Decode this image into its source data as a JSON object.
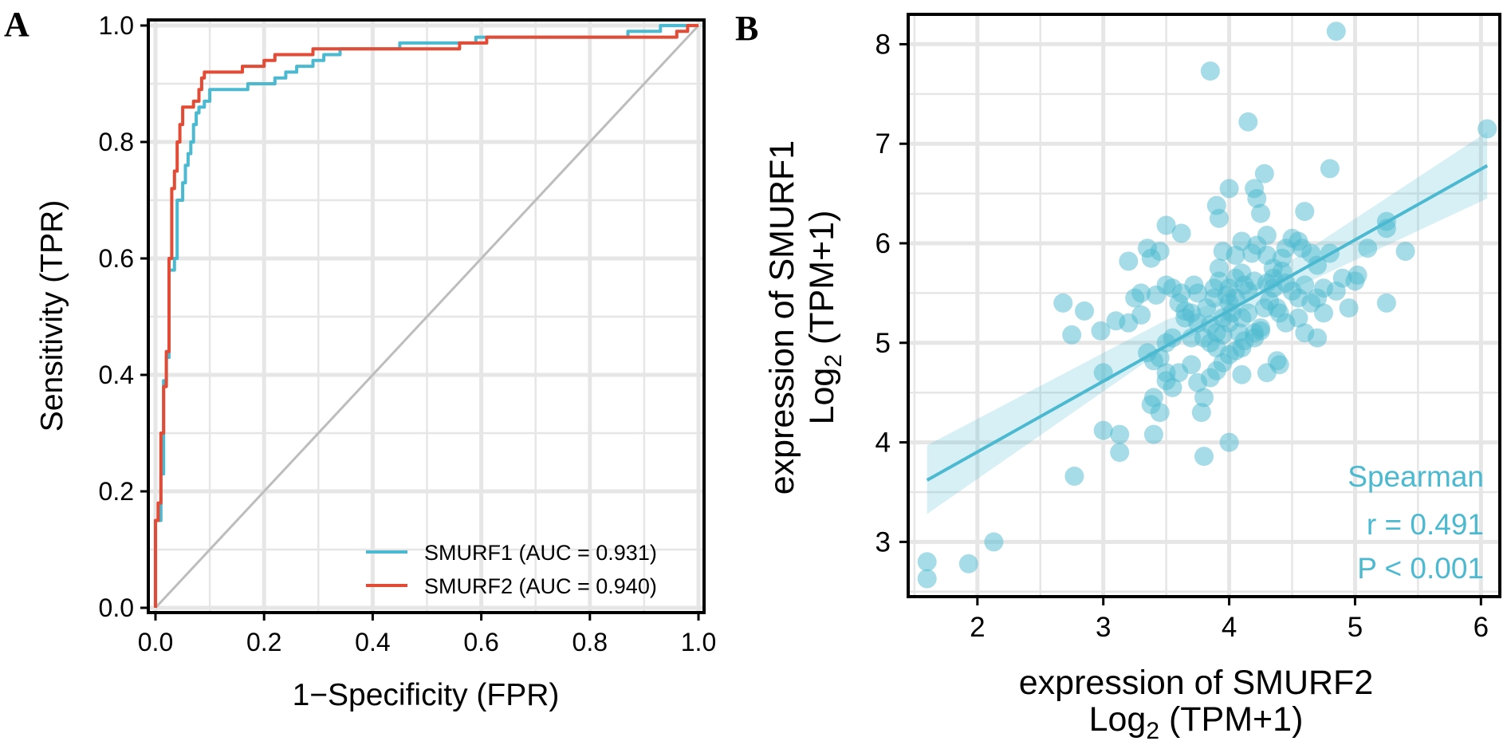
{
  "panels": {
    "a_letter": "A",
    "b_letter": "B"
  },
  "chart_data": [
    {
      "type": "line",
      "panel": "A",
      "title": "",
      "xlabel": "1−Specificity (FPR)",
      "ylabel": "Sensitivity (TPR)",
      "xlim": [
        0,
        1
      ],
      "ylim": [
        0,
        1
      ],
      "xticks": [
        "0.0",
        "0.2",
        "0.4",
        "0.6",
        "0.8",
        "1.0"
      ],
      "yticks": [
        "0.0",
        "0.2",
        "0.4",
        "0.6",
        "0.8",
        "1.0"
      ],
      "grid": true,
      "legend_position": "bottom-right",
      "diagonal_color": "#bdbdbd",
      "series": [
        {
          "name": "SMURF1 (AUC = 0.931)",
          "color": "#4bb9d0",
          "points": [
            [
              0,
              0
            ],
            [
              0,
              0.15
            ],
            [
              0.01,
              0.15
            ],
            [
              0.01,
              0.23
            ],
            [
              0.015,
              0.23
            ],
            [
              0.015,
              0.39
            ],
            [
              0.02,
              0.39
            ],
            [
              0.02,
              0.43
            ],
            [
              0.025,
              0.43
            ],
            [
              0.025,
              0.58
            ],
            [
              0.035,
              0.58
            ],
            [
              0.035,
              0.6
            ],
            [
              0.04,
              0.6
            ],
            [
              0.04,
              0.7
            ],
            [
              0.05,
              0.7
            ],
            [
              0.05,
              0.73
            ],
            [
              0.055,
              0.73
            ],
            [
              0.055,
              0.76
            ],
            [
              0.06,
              0.76
            ],
            [
              0.06,
              0.78
            ],
            [
              0.065,
              0.78
            ],
            [
              0.065,
              0.8
            ],
            [
              0.07,
              0.8
            ],
            [
              0.07,
              0.83
            ],
            [
              0.075,
              0.83
            ],
            [
              0.075,
              0.85
            ],
            [
              0.08,
              0.85
            ],
            [
              0.08,
              0.86
            ],
            [
              0.09,
              0.86
            ],
            [
              0.09,
              0.87
            ],
            [
              0.1,
              0.87
            ],
            [
              0.1,
              0.89
            ],
            [
              0.17,
              0.89
            ],
            [
              0.17,
              0.9
            ],
            [
              0.22,
              0.9
            ],
            [
              0.22,
              0.91
            ],
            [
              0.24,
              0.91
            ],
            [
              0.24,
              0.92
            ],
            [
              0.26,
              0.92
            ],
            [
              0.26,
              0.93
            ],
            [
              0.29,
              0.93
            ],
            [
              0.29,
              0.94
            ],
            [
              0.31,
              0.94
            ],
            [
              0.31,
              0.95
            ],
            [
              0.34,
              0.95
            ],
            [
              0.34,
              0.96
            ],
            [
              0.45,
              0.96
            ],
            [
              0.45,
              0.97
            ],
            [
              0.59,
              0.97
            ],
            [
              0.59,
              0.98
            ],
            [
              0.87,
              0.98
            ],
            [
              0.87,
              0.99
            ],
            [
              0.93,
              0.99
            ],
            [
              0.93,
              1.0
            ],
            [
              1.0,
              1.0
            ]
          ]
        },
        {
          "name": "SMURF2 (AUC = 0.940)",
          "color": "#e24b35",
          "points": [
            [
              0,
              0
            ],
            [
              0,
              0.15
            ],
            [
              0.005,
              0.15
            ],
            [
              0.005,
              0.18
            ],
            [
              0.01,
              0.18
            ],
            [
              0.01,
              0.3
            ],
            [
              0.015,
              0.3
            ],
            [
              0.015,
              0.38
            ],
            [
              0.02,
              0.38
            ],
            [
              0.02,
              0.44
            ],
            [
              0.025,
              0.44
            ],
            [
              0.025,
              0.6
            ],
            [
              0.03,
              0.6
            ],
            [
              0.03,
              0.72
            ],
            [
              0.035,
              0.72
            ],
            [
              0.035,
              0.75
            ],
            [
              0.04,
              0.75
            ],
            [
              0.04,
              0.8
            ],
            [
              0.045,
              0.8
            ],
            [
              0.045,
              0.83
            ],
            [
              0.05,
              0.83
            ],
            [
              0.05,
              0.86
            ],
            [
              0.07,
              0.86
            ],
            [
              0.07,
              0.87
            ],
            [
              0.08,
              0.87
            ],
            [
              0.08,
              0.89
            ],
            [
              0.085,
              0.89
            ],
            [
              0.085,
              0.91
            ],
            [
              0.09,
              0.91
            ],
            [
              0.09,
              0.92
            ],
            [
              0.16,
              0.92
            ],
            [
              0.16,
              0.93
            ],
            [
              0.2,
              0.93
            ],
            [
              0.2,
              0.94
            ],
            [
              0.22,
              0.94
            ],
            [
              0.22,
              0.95
            ],
            [
              0.29,
              0.95
            ],
            [
              0.29,
              0.96
            ],
            [
              0.56,
              0.96
            ],
            [
              0.56,
              0.97
            ],
            [
              0.61,
              0.97
            ],
            [
              0.61,
              0.98
            ],
            [
              0.96,
              0.98
            ],
            [
              0.96,
              0.99
            ],
            [
              0.98,
              0.99
            ],
            [
              0.98,
              1.0
            ],
            [
              1.0,
              1.0
            ]
          ]
        }
      ]
    },
    {
      "type": "scatter",
      "panel": "B",
      "title": "",
      "xlabel": "expression of SMURF2",
      "xlabel2_main": "Log",
      "xlabel2_sub": "2",
      "xlabel2_rest": " (TPM+1)",
      "ylabel": "expression of SMURF1",
      "ylabel2_main": "Log",
      "ylabel2_sub": "2",
      "ylabel2_rest": " (TPM+1)",
      "xlim": [
        1.45,
        6.15
      ],
      "ylim": [
        2.45,
        8.3
      ],
      "xticks": [
        2,
        3,
        4,
        5,
        6
      ],
      "yticks": [
        3,
        4,
        5,
        6,
        7,
        8
      ],
      "grid": true,
      "color": "#4bb9d0",
      "stat_method": "Spearman",
      "stat_r": "r = 0.491",
      "stat_p": "P < 0.001",
      "regression": {
        "x": [
          1.6,
          6.05
        ],
        "y": [
          3.62,
          6.78
        ]
      },
      "ci_band": {
        "x": [
          1.6,
          3.5,
          4.1,
          6.05
        ],
        "lower": [
          3.28,
          4.95,
          5.3,
          6.45
        ],
        "upper": [
          3.97,
          5.23,
          5.5,
          7.12
        ]
      },
      "points": [
        [
          1.6,
          2.8
        ],
        [
          1.6,
          2.63
        ],
        [
          1.93,
          2.78
        ],
        [
          2.13,
          3.0
        ],
        [
          2.77,
          3.66
        ],
        [
          3.0,
          4.12
        ],
        [
          3.13,
          3.9
        ],
        [
          3.13,
          4.08
        ],
        [
          3.4,
          4.08
        ],
        [
          3.8,
          3.86
        ],
        [
          4.0,
          4.0
        ],
        [
          3.85,
          7.73
        ],
        [
          4.85,
          8.13
        ],
        [
          4.15,
          7.22
        ],
        [
          6.05,
          7.15
        ],
        [
          4.8,
          6.75
        ],
        [
          4.0,
          6.55
        ],
        [
          4.2,
          6.55
        ],
        [
          4.28,
          6.7
        ],
        [
          3.9,
          6.38
        ],
        [
          3.92,
          6.25
        ],
        [
          4.22,
          6.45
        ],
        [
          4.25,
          6.3
        ],
        [
          4.6,
          6.32
        ],
        [
          3.5,
          6.18
        ],
        [
          3.62,
          6.1
        ],
        [
          3.35,
          5.95
        ],
        [
          3.45,
          5.92
        ],
        [
          3.38,
          5.85
        ],
        [
          3.2,
          5.82
        ],
        [
          3.5,
          5.58
        ],
        [
          3.55,
          5.55
        ],
        [
          3.42,
          5.48
        ],
        [
          3.3,
          5.5
        ],
        [
          3.62,
          5.5
        ],
        [
          3.75,
          5.5
        ],
        [
          3.88,
          5.55
        ],
        [
          3.92,
          5.75
        ],
        [
          4.0,
          5.55
        ],
        [
          4.05,
          5.65
        ],
        [
          4.1,
          5.7
        ],
        [
          4.12,
          5.58
        ],
        [
          4.18,
          5.9
        ],
        [
          4.22,
          5.98
        ],
        [
          4.3,
          5.88
        ],
        [
          4.35,
          5.75
        ],
        [
          4.42,
          5.85
        ],
        [
          4.5,
          6.05
        ],
        [
          4.58,
          5.95
        ],
        [
          4.65,
          5.9
        ],
        [
          4.7,
          5.78
        ],
        [
          4.75,
          5.55
        ],
        [
          4.8,
          5.9
        ],
        [
          4.9,
          5.65
        ],
        [
          4.95,
          5.35
        ],
        [
          5.0,
          5.62
        ],
        [
          5.02,
          5.68
        ],
        [
          5.1,
          5.95
        ],
        [
          5.25,
          6.22
        ],
        [
          5.25,
          6.15
        ],
        [
          5.4,
          5.92
        ],
        [
          5.25,
          5.4
        ],
        [
          4.55,
          5.25
        ],
        [
          4.6,
          5.1
        ],
        [
          4.7,
          5.05
        ],
        [
          4.45,
          5.2
        ],
        [
          4.4,
          5.3
        ],
        [
          4.38,
          5.35
        ],
        [
          4.32,
          5.42
        ],
        [
          4.25,
          5.15
        ],
        [
          4.2,
          5.1
        ],
        [
          4.15,
          5.3
        ],
        [
          4.1,
          5.25
        ],
        [
          4.05,
          5.45
        ],
        [
          4.0,
          5.4
        ],
        [
          3.95,
          5.25
        ],
        [
          3.9,
          5.1
        ],
        [
          3.85,
          5.18
        ],
        [
          3.8,
          5.05
        ],
        [
          3.75,
          5.2
        ],
        [
          3.7,
          5.3
        ],
        [
          3.65,
          5.32
        ],
        [
          3.6,
          5.4
        ],
        [
          3.55,
          5.05
        ],
        [
          3.5,
          5.0
        ],
        [
          3.45,
          4.85
        ],
        [
          3.4,
          4.82
        ],
        [
          3.35,
          4.9
        ],
        [
          3.5,
          4.7
        ],
        [
          3.6,
          4.7
        ],
        [
          3.7,
          4.78
        ],
        [
          3.75,
          4.6
        ],
        [
          3.85,
          4.65
        ],
        [
          3.9,
          4.72
        ],
        [
          3.95,
          4.8
        ],
        [
          4.0,
          4.88
        ],
        [
          4.1,
          4.95
        ],
        [
          4.2,
          5.05
        ],
        [
          4.3,
          4.7
        ],
        [
          4.38,
          4.82
        ],
        [
          4.4,
          4.78
        ],
        [
          4.1,
          4.68
        ],
        [
          3.8,
          4.45
        ],
        [
          3.78,
          4.3
        ],
        [
          3.4,
          4.45
        ],
        [
          3.45,
          4.3
        ],
        [
          3.38,
          4.38
        ],
        [
          3.5,
          4.62
        ],
        [
          3.55,
          4.55
        ],
        [
          3.0,
          4.7
        ],
        [
          2.98,
          5.12
        ],
        [
          2.85,
          5.32
        ],
        [
          2.68,
          5.4
        ],
        [
          2.75,
          5.08
        ],
        [
          3.1,
          5.22
        ],
        [
          3.2,
          5.2
        ],
        [
          3.25,
          5.45
        ],
        [
          3.3,
          5.28
        ],
        [
          3.85,
          5.0
        ],
        [
          3.9,
          4.95
        ],
        [
          4.05,
          4.92
        ],
        [
          4.12,
          5.02
        ],
        [
          4.25,
          5.12
        ],
        [
          4.3,
          5.6
        ],
        [
          4.35,
          5.55
        ],
        [
          4.45,
          5.6
        ],
        [
          4.5,
          5.52
        ],
        [
          4.55,
          5.45
        ],
        [
          4.6,
          5.58
        ],
        [
          4.65,
          5.4
        ],
        [
          4.7,
          5.45
        ],
        [
          4.75,
          5.3
        ],
        [
          4.85,
          5.52
        ],
        [
          4.55,
          6.02
        ],
        [
          4.45,
          5.95
        ],
        [
          4.3,
          6.08
        ],
        [
          4.1,
          6.02
        ],
        [
          4.05,
          5.88
        ],
        [
          3.95,
          5.92
        ],
        [
          3.92,
          5.62
        ],
        [
          3.98,
          5.48
        ],
        [
          4.02,
          5.3
        ],
        [
          4.08,
          5.1
        ],
        [
          4.15,
          5.52
        ],
        [
          4.28,
          5.35
        ],
        [
          4.35,
          5.65
        ],
        [
          4.42,
          5.72
        ],
        [
          3.65,
          5.25
        ],
        [
          3.7,
          5.05
        ],
        [
          3.82,
          5.35
        ],
        [
          3.88,
          5.45
        ],
        [
          3.72,
          5.58
        ],
        [
          4.2,
          5.62
        ],
        [
          4.0,
          5.2
        ],
        [
          3.95,
          5.08
        ]
      ]
    }
  ]
}
